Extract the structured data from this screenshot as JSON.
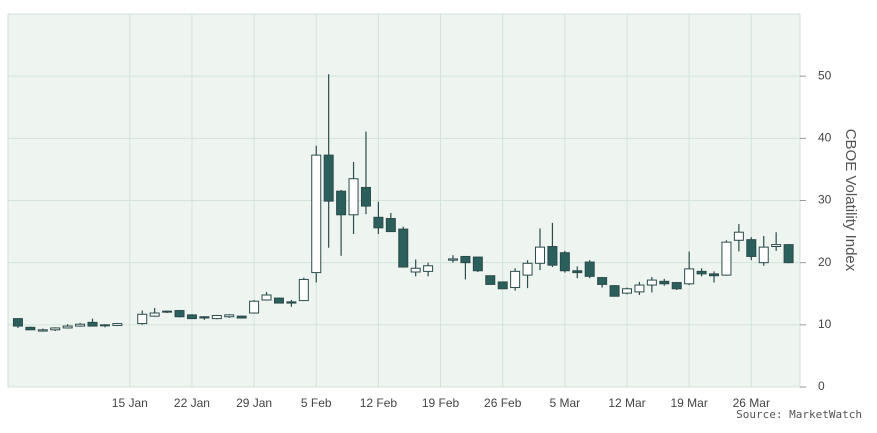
{
  "chart_data": {
    "type": "candlestick",
    "y_label": "CBOE Volatility Index",
    "source": "Source: MarketWatch",
    "x": [
      "1 Jan",
      "2 Jan",
      "3 Jan",
      "4 Jan",
      "5 Jan",
      "8 Jan",
      "9 Jan",
      "10 Jan",
      "11 Jan",
      "12 Jan",
      "15 Jan",
      "16 Jan",
      "17 Jan",
      "18 Jan",
      "19 Jan",
      "22 Jan",
      "23 Jan",
      "24 Jan",
      "25 Jan",
      "26 Jan",
      "29 Jan",
      "30 Jan",
      "31 Jan",
      "1 Feb",
      "2 Feb",
      "5 Feb",
      "6 Feb",
      "7 Feb",
      "8 Feb",
      "9 Feb",
      "12 Feb",
      "13 Feb",
      "14 Feb",
      "15 Feb",
      "16 Feb",
      "19 Feb",
      "20 Feb",
      "21 Feb",
      "22 Feb",
      "23 Feb",
      "26 Feb",
      "27 Feb",
      "28 Feb",
      "1 Mar",
      "2 Mar",
      "5 Mar",
      "6 Mar",
      "7 Mar",
      "8 Mar",
      "9 Mar",
      "12 Mar",
      "13 Mar",
      "14 Mar",
      "15 Mar",
      "16 Mar",
      "19 Mar",
      "20 Mar",
      "21 Mar",
      "22 Mar",
      "23 Mar",
      "26 Mar",
      "27 Mar",
      "28 Mar",
      "29 Mar",
      "30 Mar"
    ],
    "open": [
      null,
      11.0,
      9.6,
      9.0,
      9.2,
      9.5,
      9.8,
      10.4,
      10.0,
      9.9,
      null,
      10.2,
      11.4,
      12.1,
      12.3,
      11.6,
      11.3,
      11.0,
      11.3,
      11.4,
      11.9,
      14.0,
      14.3,
      13.7,
      13.9,
      18.4,
      37.3,
      31.5,
      27.7,
      32.1,
      27.3,
      27.1,
      25.4,
      18.5,
      18.6,
      null,
      20.4,
      21.0,
      20.9,
      17.9,
      16.9,
      16.0,
      18.0,
      19.9,
      22.6,
      21.6,
      18.7,
      20.1,
      17.6,
      16.3,
      15.1,
      15.3,
      16.4,
      17.0,
      16.8,
      16.6,
      18.6,
      18.2,
      18.0,
      23.6,
      23.7,
      20.0,
      22.6,
      22.9,
      null
    ],
    "high": [
      null,
      11.0,
      9.7,
      9.4,
      9.6,
      10.1,
      10.3,
      11.0,
      10.1,
      10.3,
      null,
      12.3,
      12.7,
      12.3,
      12.4,
      11.7,
      11.4,
      11.6,
      11.7,
      11.5,
      14.0,
      15.3,
      14.4,
      14.0,
      17.6,
      38.8,
      50.3,
      31.7,
      36.2,
      41.1,
      29.8,
      28.0,
      25.8,
      20.5,
      20.0,
      null,
      21.2,
      21.0,
      20.9,
      17.9,
      16.9,
      19.1,
      20.4,
      25.5,
      26.4,
      21.9,
      19.4,
      20.4,
      17.7,
      16.4,
      16.0,
      16.9,
      17.7,
      17.4,
      16.9,
      21.8,
      19.1,
      18.6,
      23.6,
      26.2,
      24.1,
      24.3,
      24.9,
      23.0,
      null
    ],
    "low": [
      null,
      9.5,
      9.2,
      8.9,
      9.0,
      9.4,
      9.7,
      9.9,
      9.6,
      9.8,
      null,
      10.0,
      11.3,
      11.9,
      11.2,
      11.0,
      10.8,
      10.9,
      11.1,
      11.0,
      11.8,
      13.9,
      13.5,
      12.9,
      13.9,
      16.8,
      22.4,
      21.1,
      24.6,
      27.8,
      24.6,
      25.0,
      19.2,
      17.8,
      17.8,
      null,
      20.0,
      17.3,
      18.5,
      16.5,
      15.8,
      15.5,
      15.9,
      18.8,
      19.3,
      18.4,
      17.5,
      17.5,
      16.0,
      14.6,
      14.9,
      14.8,
      15.2,
      16.3,
      15.6,
      16.4,
      17.8,
      16.8,
      17.9,
      21.8,
      20.4,
      19.5,
      21.9,
      19.9,
      null
    ],
    "close": [
      null,
      9.8,
      9.2,
      9.2,
      9.5,
      9.8,
      10.1,
      9.8,
      9.9,
      10.2,
      null,
      11.7,
      11.9,
      12.2,
      11.3,
      11.0,
      11.1,
      11.5,
      11.6,
      11.1,
      13.8,
      14.8,
      13.5,
      13.5,
      17.3,
      37.3,
      29.9,
      27.7,
      33.5,
      29.1,
      25.6,
      25.0,
      19.3,
      19.1,
      19.5,
      null,
      20.6,
      20.0,
      18.7,
      16.5,
      15.8,
      18.6,
      19.9,
      22.5,
      19.6,
      18.7,
      18.4,
      17.8,
      16.5,
      14.6,
      15.8,
      16.4,
      17.2,
      16.6,
      15.8,
      19.0,
      18.2,
      17.9,
      23.3,
      24.9,
      21.0,
      22.5,
      22.9,
      20.0,
      null
    ],
    "up_color": "#ffffff",
    "down_color": "#2b5f5c",
    "xticks": [
      "15 Jan",
      "22 Jan",
      "29 Jan",
      "5 Feb",
      "12 Feb",
      "19 Feb",
      "26 Feb",
      "5 Mar",
      "12 Mar",
      "19 Mar",
      "26 Mar"
    ],
    "ylim": [
      0,
      60
    ],
    "yticks": [
      0,
      10,
      20,
      30,
      40,
      50
    ],
    "grid": true
  }
}
